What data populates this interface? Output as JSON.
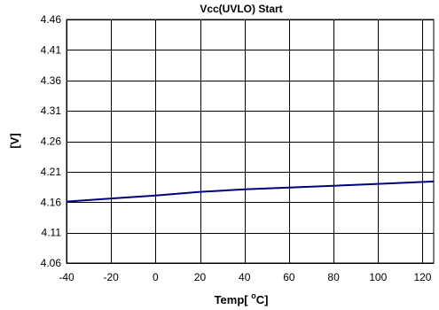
{
  "chart_data": {
    "type": "line",
    "title": "Vcc(UVLO) Start",
    "xlabel_main": "Temp[ ",
    "xlabel_sup": "o",
    "xlabel_tail": "C]",
    "ylabel": "[V]",
    "xlim": [
      -40,
      125
    ],
    "ylim": [
      4.06,
      4.46
    ],
    "xticks": [
      -40,
      -20,
      0,
      20,
      40,
      60,
      80,
      100,
      120
    ],
    "yticks": [
      4.06,
      4.11,
      4.16,
      4.21,
      4.26,
      4.31,
      4.36,
      4.41,
      4.46
    ],
    "grid": true,
    "series": [
      {
        "color": "#000080",
        "x": [
          -40,
          -20,
          0,
          20,
          40,
          60,
          80,
          100,
          125
        ],
        "y": [
          4.161,
          4.166,
          4.171,
          4.177,
          4.181,
          4.184,
          4.187,
          4.19,
          4.194
        ]
      }
    ]
  }
}
